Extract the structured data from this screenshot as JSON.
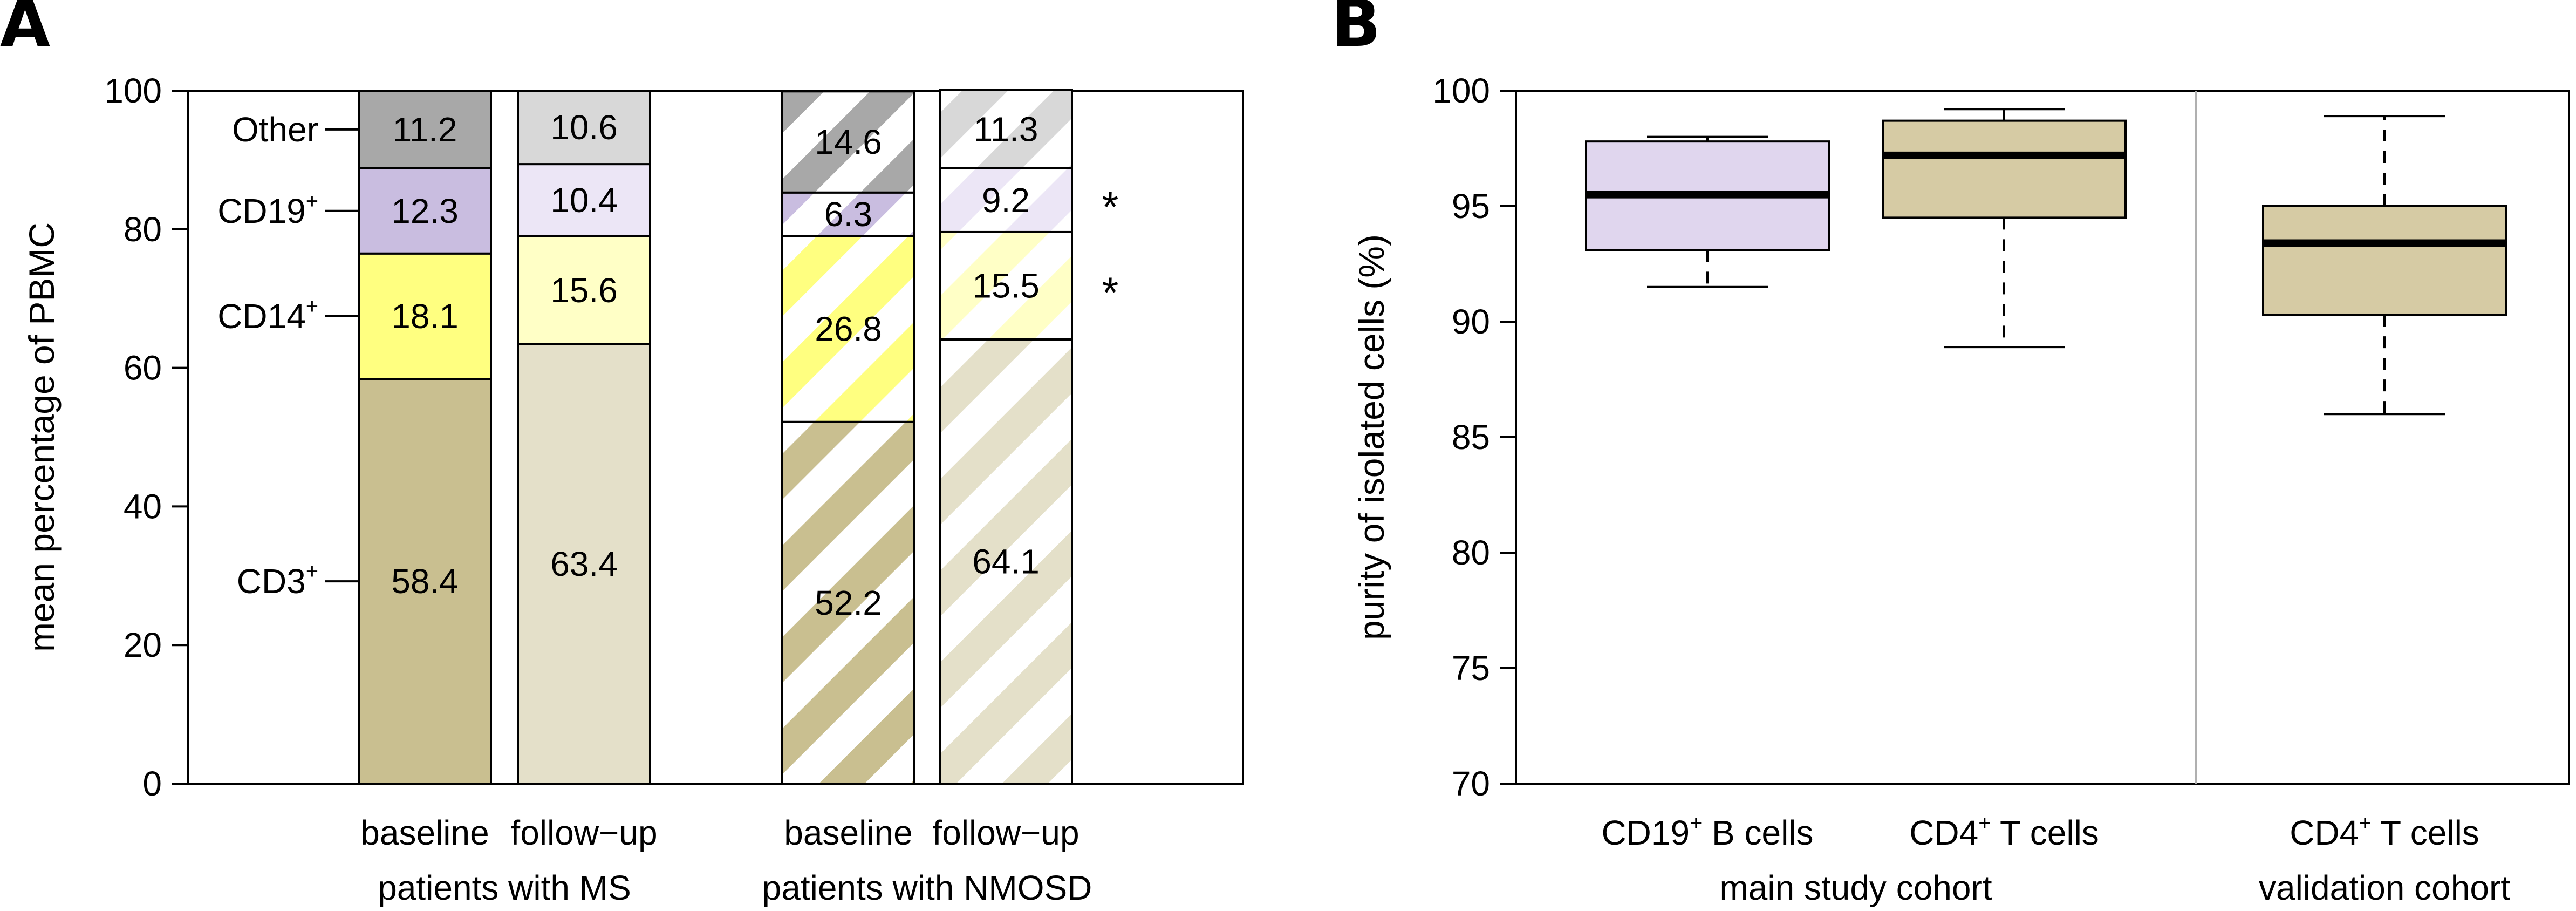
{
  "chart_data": [
    {
      "type": "bar",
      "panel": "A",
      "title": "",
      "xlabel": "",
      "ylabel": "mean percentage of PBMC",
      "ylim": [
        0,
        100
      ],
      "yticks": [
        0,
        20,
        40,
        60,
        80,
        100
      ],
      "categories": [
        {
          "label": "baseline",
          "group": "MS",
          "hatched": false
        },
        {
          "label": "follow−up",
          "group": "MS",
          "hatched": false
        },
        {
          "label": "baseline",
          "group": "NMOSD",
          "hatched": true
        },
        {
          "label": "follow−up",
          "group": "NMOSD",
          "hatched": true
        }
      ],
      "group_labels": [
        "patients with MS",
        "patients with NMOSD"
      ],
      "series": [
        {
          "name": "CD3",
          "sup": "+",
          "label": "CD3",
          "values": [
            58.4,
            63.4,
            52.2,
            64.1
          ],
          "labels": [
            "58.4",
            "63.4",
            "52.2",
            "64.1"
          ],
          "colors": [
            "#c9bf90",
            "#e4e0c9",
            "#c9bf90",
            "#e4e0c9"
          ]
        },
        {
          "name": "CD14",
          "sup": "+",
          "label": "CD14",
          "values": [
            18.1,
            15.6,
            26.8,
            15.5
          ],
          "labels": [
            "18.1",
            "15.6",
            "26.8",
            "15.5"
          ],
          "colors": [
            "#ffff80",
            "#ffffc6",
            "#ffff80",
            "#ffffc6"
          ]
        },
        {
          "name": "CD19",
          "sup": "+",
          "label": "CD19",
          "values": [
            12.3,
            10.4,
            6.3,
            9.2
          ],
          "labels": [
            "12.3",
            "10.4",
            "6.3",
            "9.2"
          ],
          "colors": [
            "#c9bde0",
            "#ece6f6",
            "#c9bde0",
            "#ece6f6"
          ]
        },
        {
          "name": "Other",
          "sup": "",
          "label": "Other",
          "values": [
            11.2,
            10.6,
            14.6,
            11.3
          ],
          "labels": [
            "11.2",
            "10.6",
            "14.6",
            "11.3"
          ],
          "colors": [
            "#a8a8a8",
            "#d8d8d8",
            "#a8a8a8",
            "#d8d8d8"
          ]
        }
      ],
      "annotations": [
        {
          "text": "*",
          "series": "CD19",
          "category_index": 3
        },
        {
          "text": "*",
          "series": "CD14",
          "category_index": 3
        }
      ]
    },
    {
      "type": "boxplot",
      "panel": "B",
      "title": "",
      "xlabel": "",
      "ylabel": "purity of isolated cells (%)",
      "ylim": [
        70,
        100
      ],
      "yticks": [
        70,
        75,
        80,
        85,
        90,
        95,
        100
      ],
      "boxes": [
        {
          "label": "CD19",
          "sup": "+",
          "label_suffix": " B cells",
          "group": "main study cohort",
          "whisker_low": 91.5,
          "q1": 93.1,
          "median": 95.5,
          "q3": 97.8,
          "whisker_high": 98.0,
          "color": "#e0d6ee"
        },
        {
          "label": "CD4",
          "sup": "+",
          "label_suffix": " T cells",
          "group": "main study cohort",
          "whisker_low": 88.9,
          "q1": 94.5,
          "median": 97.2,
          "q3": 98.7,
          "whisker_high": 99.2,
          "color": "#d6cba4"
        },
        {
          "label": "CD4",
          "sup": "+",
          "label_suffix": " T cells",
          "group": "validation cohort",
          "whisker_low": 86.0,
          "q1": 90.3,
          "median": 93.4,
          "q3": 95.0,
          "whisker_high": 98.9,
          "color": "#d6cba4"
        }
      ],
      "group_labels": [
        "main study cohort",
        "validation cohort"
      ]
    }
  ],
  "panels": {
    "a_letter": "A",
    "b_letter": "B"
  }
}
